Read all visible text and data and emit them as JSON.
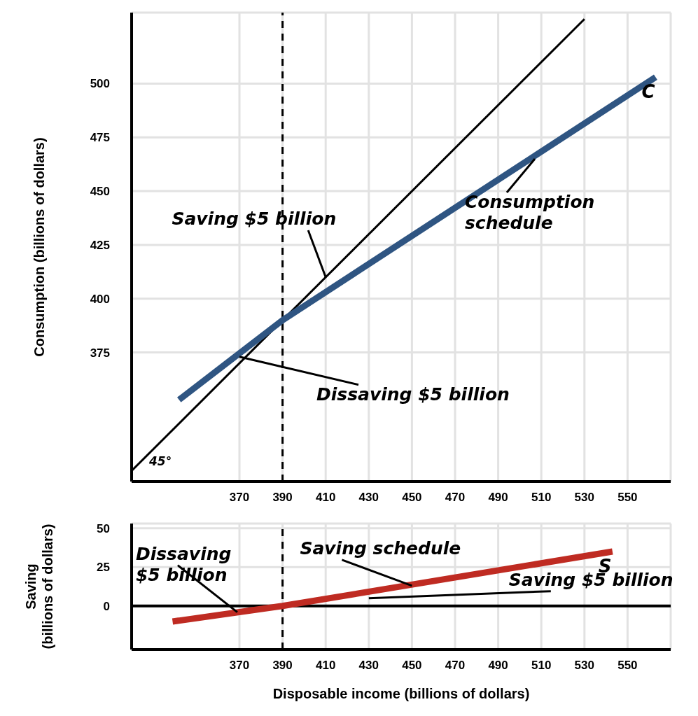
{
  "chart_data": [
    {
      "type": "line",
      "ylabel": "Consumption (billions of dollars)",
      "xlim": [
        320,
        570
      ],
      "xticks": [
        370,
        390,
        410,
        430,
        450,
        470,
        490,
        510,
        530,
        550
      ],
      "ylim": [
        315,
        533
      ],
      "yticks": [
        375,
        400,
        425,
        450,
        475,
        500
      ],
      "grid": true,
      "marker": "none",
      "line_style": "solid",
      "series": [
        {
          "color": "#000000",
          "x": [
            320,
            530
          ],
          "values": [
            320,
            530
          ]
        },
        {
          "name": "C",
          "color": "#2f5582",
          "x": [
            342,
            390,
            563
          ],
          "values": [
            353,
            390,
            503
          ]
        }
      ],
      "ref_lines": [
        {
          "axis": "x",
          "value": 390,
          "color": "#000000",
          "line_style": "dashed"
        }
      ],
      "annotations": [
        {
          "text": "Saving $5 billion",
          "x": 410,
          "y": 410
        },
        {
          "text": "Dissaving $5 billion",
          "x": 370,
          "y": 373
        },
        {
          "text": "Consumption schedule",
          "x": 507,
          "y": 465
        },
        {
          "text": "45°",
          "x": 320,
          "y": 320
        }
      ]
    },
    {
      "type": "line",
      "xlabel": "Disposable income (billions of dollars)",
      "ylabel": "Saving (billions of dollars)",
      "xlim": [
        320,
        570
      ],
      "xticks": [
        370,
        390,
        410,
        430,
        450,
        470,
        490,
        510,
        530,
        550
      ],
      "ylim": [
        -28,
        53
      ],
      "yticks": [
        0,
        25,
        50
      ],
      "grid": true,
      "marker": "none",
      "line_style": "solid",
      "series": [
        {
          "name": "S",
          "color": "#bf2b22",
          "x": [
            339,
            390,
            543
          ],
          "values": [
            -10,
            0,
            35
          ]
        }
      ],
      "ref_lines": [
        {
          "axis": "x",
          "value": 390,
          "color": "#000000",
          "line_style": "dashed"
        },
        {
          "axis": "y",
          "value": 0,
          "color": "#000000",
          "line_style": "solid"
        }
      ],
      "annotations": [
        {
          "text": "Dissaving $5 billion",
          "x": 369,
          "y": -4
        },
        {
          "text": "Saving schedule",
          "x": 450,
          "y": 13
        },
        {
          "text": "Saving $5 billion",
          "x": 430,
          "y": 5
        }
      ]
    }
  ]
}
